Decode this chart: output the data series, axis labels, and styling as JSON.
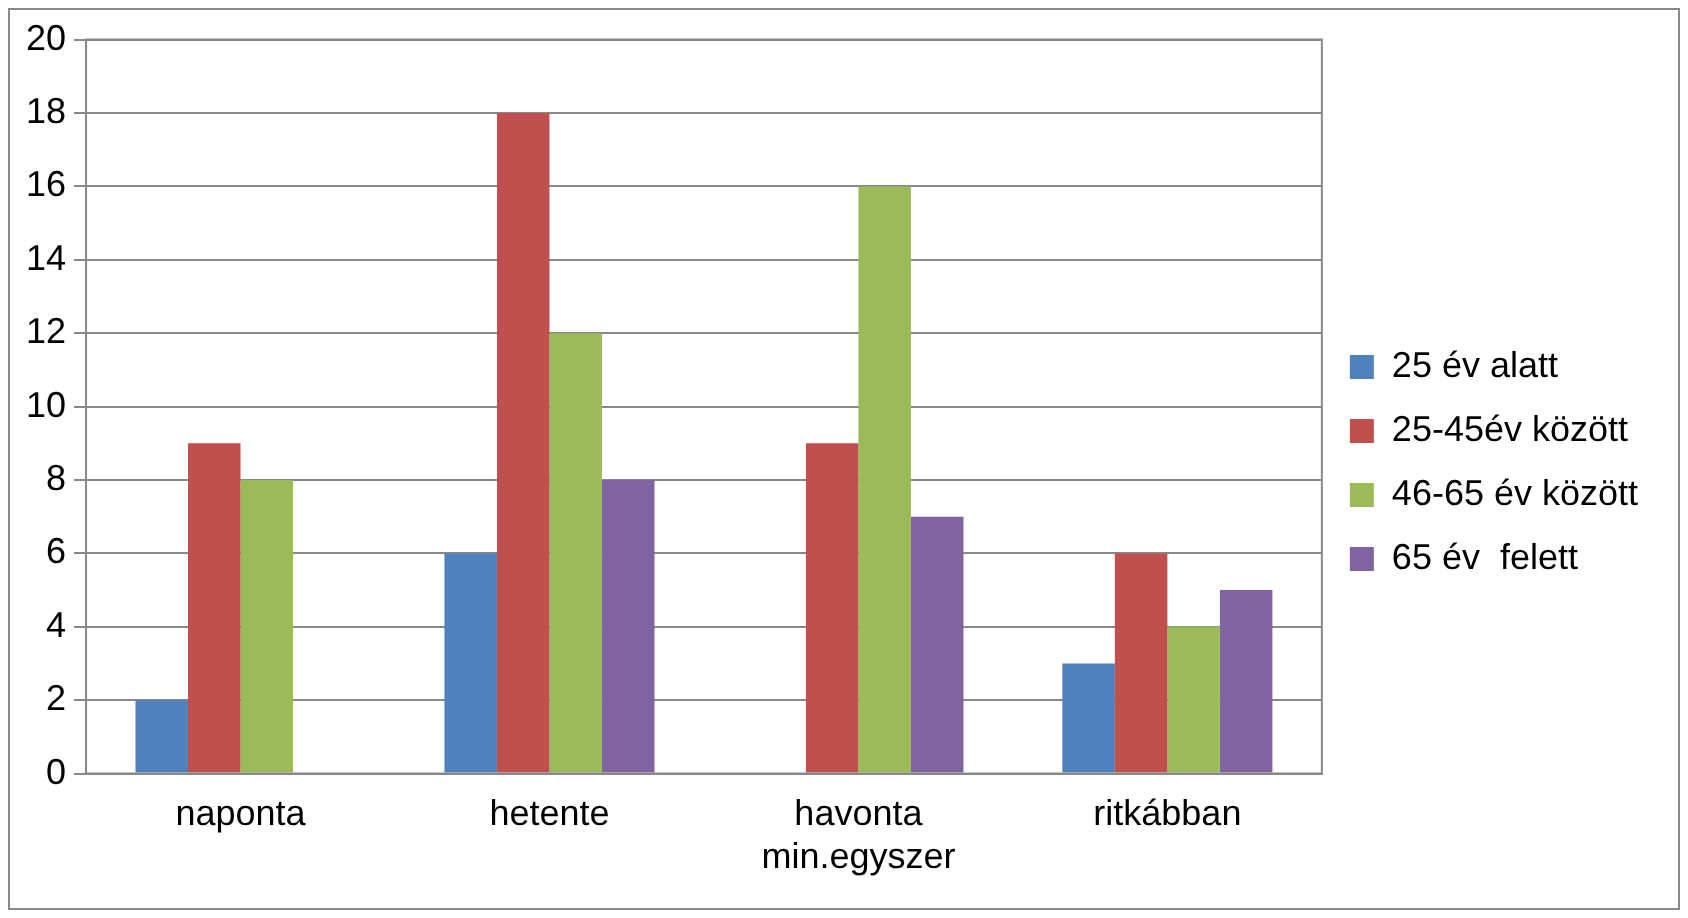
{
  "chart_data": {
    "type": "bar",
    "categories": [
      "naponta",
      "hetente",
      "havonta min.egyszer",
      "ritkábban"
    ],
    "series": [
      {
        "name": "25 év alatt",
        "color": "#4f81bd",
        "values": [
          2,
          6,
          0,
          3
        ]
      },
      {
        "name": "25-45év között",
        "color": "#c0504d",
        "values": [
          9,
          18,
          9,
          6
        ]
      },
      {
        "name": "46-65 év között",
        "color": "#9bbb59",
        "values": [
          8,
          12,
          16,
          4
        ]
      },
      {
        "name": "65 év  felett",
        "color": "#8064a2",
        "values": [
          0,
          8,
          7,
          5
        ]
      }
    ],
    "ylim": [
      0,
      20
    ],
    "yticks": [
      0,
      2,
      4,
      6,
      8,
      10,
      12,
      14,
      16,
      18,
      20
    ],
    "grid": "y",
    "legend": "right"
  }
}
